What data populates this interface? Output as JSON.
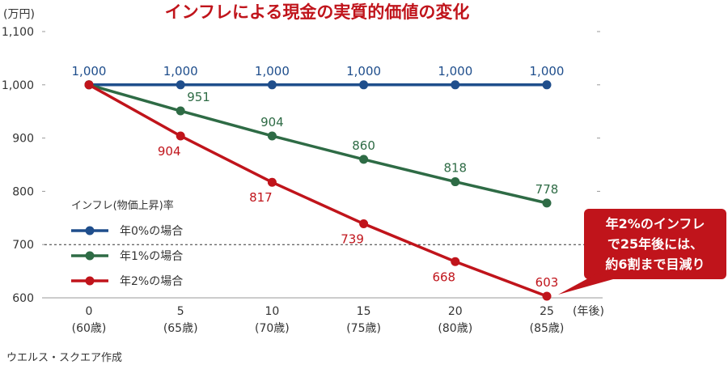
{
  "chart_data": {
    "type": "line",
    "title": "インフレによる現金の実質的価値の変化",
    "ylabel": "(万円)",
    "xlabel": "(年後)",
    "ylim": [
      600,
      1100
    ],
    "yticks": [
      "600",
      "700",
      "800",
      "900",
      "1,000",
      "1,100"
    ],
    "x": [
      0,
      5,
      10,
      15,
      20,
      25
    ],
    "x_tick_labels": [
      "0",
      "5",
      "10",
      "15",
      "20",
      "25"
    ],
    "x_tick_sublabels": [
      "(60歳)",
      "(65歳)",
      "(70歳)",
      "(75歳)",
      "(80歳)",
      "(85歳)"
    ],
    "reference_line": 700,
    "legend": {
      "title": "インフレ(物価上昇)率",
      "position": "lower-left"
    },
    "series": [
      {
        "name": "年0%の場合",
        "color": "#1f4e8c",
        "values": [
          1000,
          1000,
          1000,
          1000,
          1000,
          1000
        ],
        "labels": [
          "1,000",
          "1,000",
          "1,000",
          "1,000",
          "1,000",
          "1,000"
        ]
      },
      {
        "name": "年1%の場合",
        "color": "#2e6b45",
        "values": [
          1000,
          951,
          904,
          860,
          818,
          778
        ],
        "labels": [
          "",
          "951",
          "904",
          "860",
          "818",
          "778"
        ]
      },
      {
        "name": "年2%の場合",
        "color": "#c0141b",
        "values": [
          1000,
          904,
          817,
          739,
          668,
          603
        ],
        "labels": [
          "",
          "904",
          "817",
          "739",
          "668",
          "603"
        ]
      }
    ],
    "annotation": {
      "lines": [
        "年2%のインフレ",
        "で25年後には、",
        "約6割まで目減り"
      ],
      "color": "#c0141b"
    }
  },
  "source": "ウエルス・スクエア作成"
}
